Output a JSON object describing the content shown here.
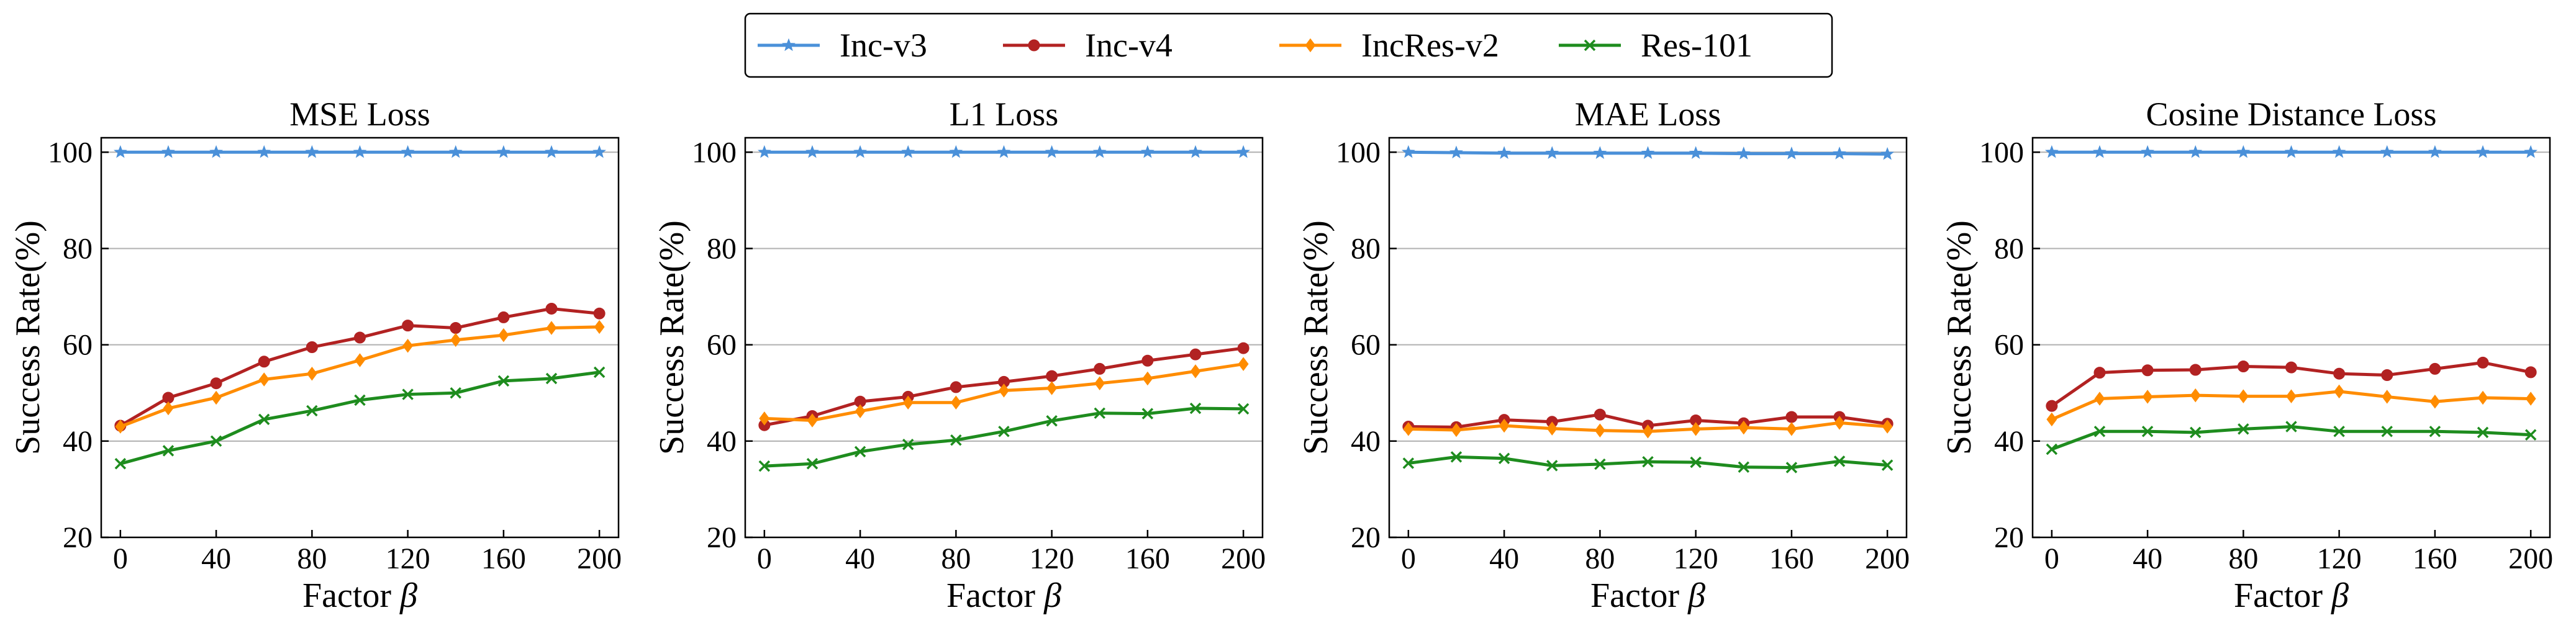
{
  "colors": {
    "Inc-v3": "#4a90d9",
    "Inc-v4": "#b22222",
    "IncRes-v2": "#ff8c00",
    "Res-101": "#1e8c1e"
  },
  "legend": [
    {
      "name": "Inc-v3",
      "marker": "star"
    },
    {
      "name": "Inc-v4",
      "marker": "circle"
    },
    {
      "name": "IncRes-v2",
      "marker": "diamond"
    },
    {
      "name": "Res-101",
      "marker": "x"
    }
  ],
  "chart_data": [
    {
      "type": "line",
      "title": "MSE Loss",
      "xlabel": "Factor",
      "xlabel_symbol": "β",
      "ylabel": "Success Rate(%)",
      "x": [
        0,
        20,
        40,
        60,
        80,
        100,
        120,
        140,
        160,
        180,
        200
      ],
      "xticks": [
        0,
        40,
        80,
        120,
        160,
        200
      ],
      "yticks": [
        20,
        40,
        60,
        80,
        100
      ],
      "xlim": [
        -8,
        208
      ],
      "ylim": [
        20,
        103
      ],
      "grid": "horizontal",
      "series": [
        {
          "name": "Inc-v3",
          "values": [
            100,
            100,
            100,
            100,
            100,
            100,
            100,
            100,
            100,
            100,
            100
          ]
        },
        {
          "name": "Inc-v4",
          "values": [
            43.2,
            49.0,
            52.0,
            56.5,
            59.5,
            61.5,
            64.0,
            63.5,
            65.7,
            67.5,
            66.5
          ]
        },
        {
          "name": "IncRes-v2",
          "values": [
            43.0,
            46.8,
            49.0,
            52.8,
            54.0,
            56.8,
            59.8,
            61.0,
            62.0,
            63.5,
            63.7
          ]
        },
        {
          "name": "Res-101",
          "values": [
            35.3,
            38.0,
            40.0,
            44.5,
            46.3,
            48.5,
            49.7,
            50.0,
            52.5,
            53.0,
            54.3
          ]
        }
      ]
    },
    {
      "type": "line",
      "title": "L1 Loss",
      "xlabel": "Factor",
      "xlabel_symbol": "β",
      "ylabel": "Success Rate(%)",
      "x": [
        0,
        20,
        40,
        60,
        80,
        100,
        120,
        140,
        160,
        180,
        200
      ],
      "xticks": [
        0,
        40,
        80,
        120,
        160,
        200
      ],
      "yticks": [
        20,
        40,
        60,
        80,
        100
      ],
      "xlim": [
        -8,
        208
      ],
      "ylim": [
        20,
        103
      ],
      "grid": "horizontal",
      "series": [
        {
          "name": "Inc-v3",
          "values": [
            100,
            100,
            100,
            100,
            100,
            100,
            100,
            100,
            100,
            100,
            100
          ]
        },
        {
          "name": "Inc-v4",
          "values": [
            43.3,
            45.2,
            48.2,
            49.2,
            51.2,
            52.3,
            53.5,
            55.0,
            56.7,
            58.0,
            59.3
          ]
        },
        {
          "name": "IncRes-v2",
          "values": [
            44.7,
            44.3,
            46.2,
            48.0,
            48.0,
            50.5,
            51.0,
            52.0,
            53.0,
            54.5,
            56.0
          ]
        },
        {
          "name": "Res-101",
          "values": [
            34.8,
            35.3,
            37.8,
            39.3,
            40.2,
            42.0,
            44.2,
            45.8,
            45.7,
            46.8,
            46.7
          ]
        }
      ]
    },
    {
      "type": "line",
      "title": "MAE Loss",
      "xlabel": "Factor",
      "xlabel_symbol": "β",
      "ylabel": "Success Rate(%)",
      "x": [
        0,
        20,
        40,
        60,
        80,
        100,
        120,
        140,
        160,
        180,
        200
      ],
      "xticks": [
        0,
        40,
        80,
        120,
        160,
        200
      ],
      "yticks": [
        20,
        40,
        60,
        80,
        100
      ],
      "xlim": [
        -8,
        208
      ],
      "ylim": [
        20,
        103
      ],
      "grid": "horizontal",
      "series": [
        {
          "name": "Inc-v3",
          "values": [
            100,
            99.9,
            99.8,
            99.8,
            99.8,
            99.8,
            99.8,
            99.7,
            99.7,
            99.7,
            99.6
          ]
        },
        {
          "name": "Inc-v4",
          "values": [
            43.0,
            42.9,
            44.4,
            44.0,
            45.5,
            43.2,
            44.3,
            43.7,
            45.0,
            45.0,
            43.6
          ]
        },
        {
          "name": "IncRes-v2",
          "values": [
            42.5,
            42.3,
            43.2,
            42.6,
            42.2,
            42.0,
            42.5,
            42.8,
            42.5,
            43.8,
            43.0
          ]
        },
        {
          "name": "Res-101",
          "values": [
            35.4,
            36.7,
            36.4,
            34.9,
            35.2,
            35.7,
            35.6,
            34.6,
            34.5,
            35.8,
            35.0
          ]
        }
      ]
    },
    {
      "type": "line",
      "title": "Cosine Distance Loss",
      "xlabel": "Factor",
      "xlabel_symbol": "β",
      "ylabel": "Success Rate(%)",
      "x": [
        0,
        20,
        40,
        60,
        80,
        100,
        120,
        140,
        160,
        180,
        200
      ],
      "xticks": [
        0,
        40,
        80,
        120,
        160,
        200
      ],
      "yticks": [
        20,
        40,
        60,
        80,
        100
      ],
      "xlim": [
        -8,
        208
      ],
      "ylim": [
        20,
        103
      ],
      "grid": "horizontal",
      "series": [
        {
          "name": "Inc-v3",
          "values": [
            100,
            100,
            100,
            100,
            100,
            100,
            100,
            100,
            100,
            100,
            100
          ]
        },
        {
          "name": "Inc-v4",
          "values": [
            47.3,
            54.2,
            54.7,
            54.8,
            55.5,
            55.3,
            54.0,
            53.7,
            55.0,
            56.3,
            54.3
          ]
        },
        {
          "name": "IncRes-v2",
          "values": [
            44.5,
            48.8,
            49.2,
            49.5,
            49.3,
            49.3,
            50.3,
            49.2,
            48.2,
            49.0,
            48.8
          ]
        },
        {
          "name": "Res-101",
          "values": [
            38.3,
            42.0,
            42.0,
            41.8,
            42.5,
            43.0,
            42.0,
            42.0,
            42.0,
            41.8,
            41.3
          ]
        }
      ]
    }
  ]
}
